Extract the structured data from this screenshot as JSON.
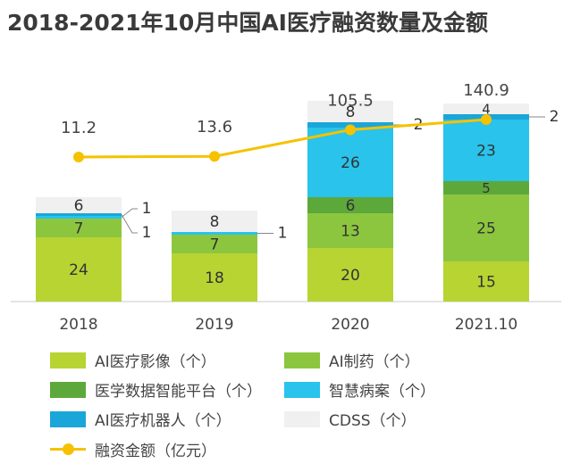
{
  "title": "2018-2021年10月中国AI医疗融资数量及金额",
  "chart_data": {
    "type": "bar",
    "categories": [
      "2018",
      "2019",
      "2020",
      "2021.10"
    ],
    "series": [
      {
        "name": "AI医疗影像（个）",
        "values": [
          24,
          18,
          20,
          15
        ],
        "color": "#b7d433"
      },
      {
        "name": "AI制药（个）",
        "values": [
          7,
          7,
          13,
          25
        ],
        "color": "#8cc63f"
      },
      {
        "name": "医学数据智能平台（个）",
        "values": [
          0,
          0,
          6,
          5
        ],
        "color": "#5da83a"
      },
      {
        "name": "智慧病案（个）",
        "values": [
          1,
          1,
          26,
          23
        ],
        "color": "#29c3ec"
      },
      {
        "name": "AI医疗机器人（个）",
        "values": [
          1,
          0,
          2,
          2
        ],
        "color": "#1aa6d9"
      },
      {
        "name": "CDSS（个）",
        "values": [
          6,
          8,
          8,
          4
        ],
        "color": "#f0f0f0"
      }
    ],
    "line_series": {
      "name": "融资金额（亿元）",
      "values": [
        11.2,
        13.6,
        105.5,
        140.9
      ],
      "color": "#f5c200"
    },
    "segment_labels": [
      [
        "24",
        "7",
        "",
        "1",
        "1",
        "6"
      ],
      [
        "18",
        "7",
        "",
        "1",
        "",
        "8"
      ],
      [
        "20",
        "13",
        "6",
        "26",
        "2",
        "8"
      ],
      [
        "15",
        "25",
        "5",
        "23",
        "2",
        "4"
      ]
    ],
    "line_labels": [
      "11.2",
      "13.6",
      "105.5",
      "140.9"
    ],
    "legend_placement": "bottom",
    "grid": false
  },
  "legend": {
    "items": [
      {
        "label": "AI医疗影像（个）",
        "color": "#b7d433"
      },
      {
        "label": "AI制药（个）",
        "color": "#8cc63f"
      },
      {
        "label": "医学数据智能平台（个）",
        "color": "#5da83a"
      },
      {
        "label": "智慧病案（个）",
        "color": "#29c3ec"
      },
      {
        "label": "AI医疗机器人（个）",
        "color": "#1aa6d9"
      },
      {
        "label": "CDSS（个）",
        "color": "#f0f0f0"
      },
      {
        "label": "融资金额（亿元）",
        "color": "#f5c200"
      }
    ]
  }
}
